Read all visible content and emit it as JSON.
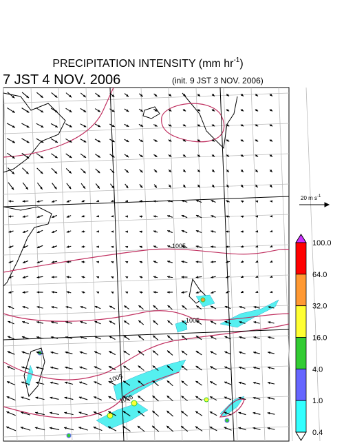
{
  "header": {
    "title": "PRECIPITATION INTENSITY (mm hr",
    "title_exponent": "-1",
    "title_end": ")",
    "valid_time": "7 JST 4 NOV. 2006",
    "init_time": "(init. 9 JST 3 NOV. 2006)"
  },
  "vector_scale": {
    "label": "20 m s",
    "label_exponent": "-1"
  },
  "contour_labels": [
    "1005",
    "1005",
    "1005",
    "1005"
  ],
  "colorbar": {
    "labels": [
      "100.0",
      "64.0",
      "32.0",
      "16.0",
      "4.0",
      "1.0",
      "0.4"
    ],
    "colors": [
      "#cc33ff",
      "#ff0000",
      "#ff9933",
      "#ffff33",
      "#33cc33",
      "#6666ff",
      "#33ffff",
      "#ffffff"
    ]
  }
}
